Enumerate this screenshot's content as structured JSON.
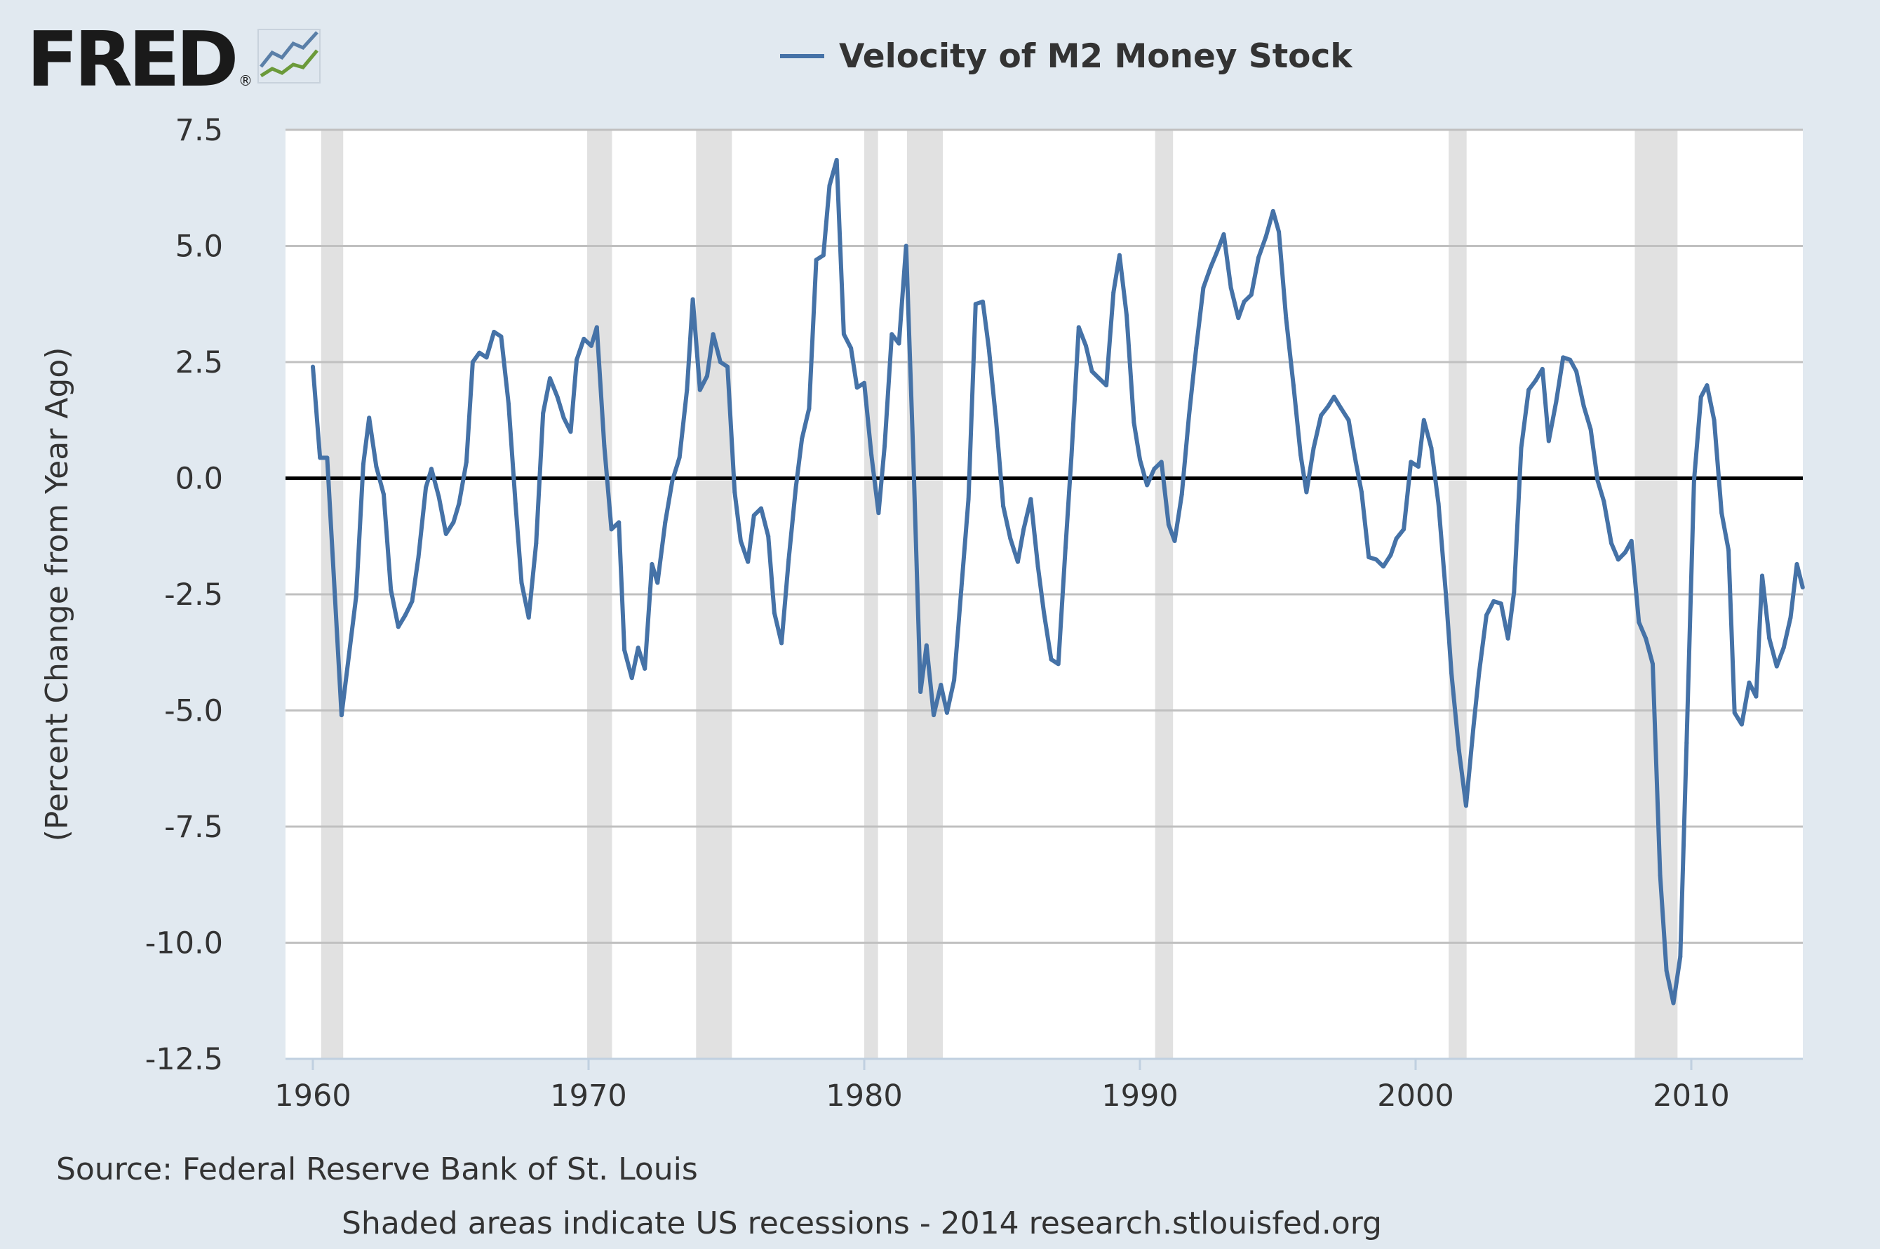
{
  "logo": {
    "text": "FRED",
    "registered": "®"
  },
  "colors": {
    "background": "#e1e9f0",
    "plot": "#ffffff",
    "series": "#4572a7",
    "grid": "#c0c0c0",
    "recession": "#e1e1e1",
    "zero_line": "#000000"
  },
  "footer": {
    "source": "Source: Federal Reserve Bank of St. Louis",
    "note": "Shaded areas indicate US recessions - 2014 research.stlouisfed.org"
  },
  "chart_data": {
    "type": "line",
    "title": "",
    "legend": [
      {
        "name": "Velocity of M2 Money Stock",
        "color": "#4572a7"
      }
    ],
    "legend_position": "top-center",
    "xlabel": "",
    "ylabel": "(Percent Change from Year Ago)",
    "xlim": [
      1959.0,
      2014.04
    ],
    "ylim": [
      -12.5,
      7.5
    ],
    "xticks": [
      "1960",
      "1970",
      "1980",
      "1990",
      "2000",
      "2010"
    ],
    "yticks": [
      "7.5",
      "5.0",
      "2.5",
      "0.0",
      "-2.5",
      "-5.0",
      "-7.5",
      "-10.0",
      "-12.5"
    ],
    "grid": true,
    "recessions": [
      [
        1960.3,
        1961.1
      ],
      [
        1969.95,
        1970.85
      ],
      [
        1973.9,
        1975.2
      ],
      [
        1980.0,
        1980.5
      ],
      [
        1981.55,
        1982.85
      ],
      [
        1990.55,
        1991.2
      ],
      [
        2001.2,
        2001.85
      ],
      [
        2007.95,
        2009.5
      ]
    ],
    "series": [
      {
        "name": "Velocity of M2 Money Stock",
        "x": [
          1960.0,
          1960.26,
          1960.52,
          1961.04,
          1961.57,
          1961.83,
          1962.04,
          1962.3,
          1962.57,
          1962.83,
          1963.1,
          1963.35,
          1963.6,
          1963.83,
          1964.1,
          1964.3,
          1964.57,
          1964.83,
          1965.1,
          1965.3,
          1965.57,
          1965.8,
          1966.04,
          1966.3,
          1966.57,
          1966.83,
          1967.1,
          1967.35,
          1967.57,
          1967.83,
          1968.1,
          1968.35,
          1968.6,
          1968.87,
          1969.1,
          1969.35,
          1969.57,
          1969.83,
          1970.1,
          1970.3,
          1970.57,
          1970.83,
          1971.1,
          1971.3,
          1971.57,
          1971.8,
          1972.04,
          1972.3,
          1972.5,
          1972.78,
          1973.04,
          1973.3,
          1973.57,
          1973.78,
          1974.04,
          1974.3,
          1974.52,
          1974.78,
          1975.04,
          1975.3,
          1975.52,
          1975.78,
          1976.0,
          1976.26,
          1976.52,
          1976.74,
          1977.0,
          1977.26,
          1977.52,
          1977.74,
          1978.0,
          1978.26,
          1978.52,
          1978.74,
          1979.0,
          1979.26,
          1979.52,
          1979.74,
          1980.0,
          1980.26,
          1980.52,
          1980.74,
          1981.0,
          1981.26,
          1981.52,
          1981.78,
          1982.04,
          1982.26,
          1982.52,
          1982.78,
          1983.0,
          1983.26,
          1983.52,
          1983.78,
          1984.04,
          1984.3,
          1984.52,
          1984.78,
          1985.04,
          1985.3,
          1985.57,
          1985.78,
          1986.04,
          1986.3,
          1986.52,
          1986.78,
          1987.04,
          1987.3,
          1987.52,
          1987.78,
          1988.04,
          1988.26,
          1988.52,
          1988.78,
          1989.04,
          1989.26,
          1989.52,
          1989.78,
          1990.0,
          1990.26,
          1990.52,
          1990.78,
          1991.04,
          1991.26,
          1991.52,
          1991.78,
          1992.04,
          1992.3,
          1992.57,
          1992.78,
          1993.04,
          1993.3,
          1993.57,
          1993.78,
          1994.04,
          1994.3,
          1994.57,
          1994.83,
          1995.04,
          1995.3,
          1995.57,
          1995.83,
          1996.04,
          1996.3,
          1996.57,
          1996.83,
          1997.04,
          1997.3,
          1997.57,
          1997.83,
          1998.04,
          1998.3,
          1998.57,
          1998.83,
          1999.1,
          1999.3,
          1999.57,
          1999.83,
          2000.1,
          2000.3,
          2000.57,
          2000.83,
          2001.1,
          2001.3,
          2001.57,
          2001.83,
          2002.1,
          2002.3,
          2002.57,
          2002.83,
          2003.1,
          2003.35,
          2003.57,
          2003.83,
          2004.1,
          2004.35,
          2004.6,
          2004.83,
          2005.1,
          2005.35,
          2005.6,
          2005.83,
          2006.1,
          2006.35,
          2006.6,
          2006.83,
          2007.1,
          2007.35,
          2007.6,
          2007.83,
          2008.1,
          2008.35,
          2008.6,
          2008.87,
          2009.1,
          2009.35,
          2009.6,
          2009.83,
          2010.1,
          2010.35,
          2010.57,
          2010.83,
          2011.1,
          2011.35,
          2011.57,
          2011.83,
          2012.1,
          2012.35,
          2012.57,
          2012.83,
          2013.1,
          2013.35,
          2013.6,
          2013.83,
          2014.04
        ],
        "values": [
          2.4,
          0.44,
          0.44,
          -5.1,
          -2.55,
          0.3,
          1.3,
          0.25,
          -0.35,
          -2.4,
          -3.2,
          -2.95,
          -2.65,
          -1.7,
          -0.2,
          0.2,
          -0.4,
          -1.2,
          -0.95,
          -0.55,
          0.35,
          2.5,
          2.7,
          2.6,
          3.15,
          3.05,
          1.6,
          -0.55,
          -2.25,
          -3.0,
          -1.4,
          1.4,
          2.15,
          1.75,
          1.3,
          1.0,
          2.55,
          3.0,
          2.85,
          3.25,
          0.7,
          -1.1,
          -0.95,
          -3.7,
          -4.3,
          -3.65,
          -4.1,
          -1.85,
          -2.25,
          -0.95,
          -0.05,
          0.45,
          1.9,
          3.85,
          1.9,
          2.2,
          3.1,
          2.5,
          2.4,
          -0.3,
          -1.35,
          -1.8,
          -0.8,
          -0.65,
          -1.25,
          -2.9,
          -3.55,
          -1.75,
          -0.2,
          0.85,
          1.5,
          4.7,
          4.8,
          6.3,
          6.85,
          3.1,
          2.8,
          1.95,
          2.05,
          0.5,
          -0.75,
          0.7,
          3.1,
          2.9,
          5.0,
          0.45,
          -4.6,
          -3.6,
          -5.1,
          -4.45,
          -5.05,
          -4.35,
          -2.4,
          -0.45,
          3.75,
          3.8,
          2.8,
          1.25,
          -0.6,
          -1.3,
          -1.8,
          -1.1,
          -0.45,
          -1.9,
          -2.9,
          -3.9,
          -4.0,
          -1.5,
          0.5,
          3.25,
          2.85,
          2.3,
          2.15,
          2.0,
          4.0,
          4.8,
          3.5,
          1.2,
          0.4,
          -0.15,
          0.2,
          0.35,
          -1.0,
          -1.35,
          -0.35,
          1.35,
          2.8,
          4.1,
          4.55,
          4.85,
          5.25,
          4.1,
          3.45,
          3.8,
          3.95,
          4.75,
          5.2,
          5.75,
          5.3,
          3.45,
          2.0,
          0.5,
          -0.3,
          0.65,
          1.35,
          1.55,
          1.75,
          1.5,
          1.25,
          0.35,
          -0.3,
          -1.7,
          -1.75,
          -1.9,
          -1.65,
          -1.3,
          -1.1,
          0.35,
          0.25,
          1.25,
          0.65,
          -0.55,
          -2.5,
          -4.2,
          -5.85,
          -7.05,
          -5.35,
          -4.2,
          -2.95,
          -2.65,
          -2.7,
          -3.45,
          -2.45,
          0.65,
          1.9,
          2.1,
          2.35,
          0.8,
          1.65,
          2.6,
          2.55,
          2.3,
          1.55,
          1.05,
          -0.05,
          -0.5,
          -1.4,
          -1.75,
          -1.6,
          -1.35,
          -3.1,
          -3.45,
          -4.0,
          -8.55,
          -10.6,
          -11.3,
          -10.3,
          -5.7,
          -0.05,
          1.75,
          2.0,
          1.25,
          -0.75,
          -1.55,
          -5.05,
          -5.3,
          -4.4,
          -4.7,
          -2.1,
          -3.45,
          -4.05,
          -3.65,
          -3.0,
          -1.85,
          -2.35
        ]
      }
    ]
  }
}
